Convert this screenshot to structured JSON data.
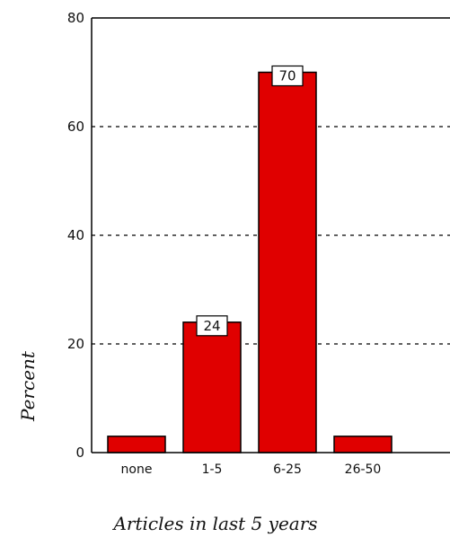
{
  "chart_data": {
    "type": "bar",
    "title": "",
    "xlabel": "Articles in last 5 years",
    "ylabel": "Percent",
    "categories": [
      "none",
      "1-5",
      "6-25",
      "26-50"
    ],
    "values": [
      3,
      24,
      70,
      3
    ],
    "data_labels": [
      "",
      "24",
      "70",
      ""
    ],
    "ylim": [
      0,
      80
    ],
    "yticks": [
      0,
      20,
      40,
      60,
      80
    ],
    "grid": "horizontal dotted at 20, 40, 60",
    "bar_color": "#e00000",
    "bar_edge_color": "#000000"
  }
}
